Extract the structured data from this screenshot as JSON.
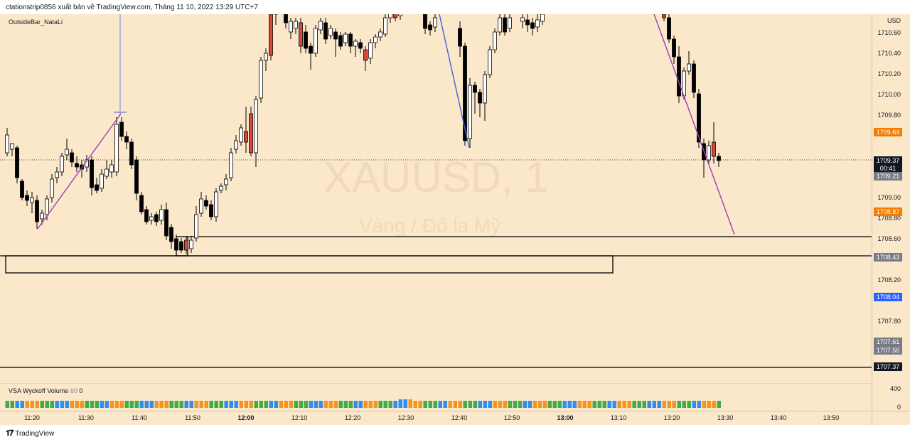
{
  "header": {
    "publisher_text": "ctationstrip0856 xuất bản về TradingView.com, Tháng 11 10, 2022 13:29 UTC+7"
  },
  "indicator_label": "OutsideBar_NataLi",
  "watermark": {
    "symbol": "XAUUSD, 1",
    "description": "Vàng / Đô la Mỹ"
  },
  "price_axis": {
    "currency": "USD",
    "ticks": [
      "1710.60",
      "1710.40",
      "1710.20",
      "1710.00",
      "1709.80",
      "1709.00",
      "1708.80",
      "1708.60",
      "1708.20",
      "1707.80"
    ],
    "tags": {
      "tag_1709_64": {
        "value": "1709.64",
        "color": "#f57c00"
      },
      "last_price": {
        "value": "1709.37",
        "countdown": "00:41",
        "color": "#131722"
      },
      "tag_1709_21": {
        "value": "1709.21",
        "color": "#787b86"
      },
      "tag_1708_87": {
        "value": "1708.87",
        "color": "#f57c00"
      },
      "tag_1708_43": {
        "value": "1708.43",
        "color": "#787b86"
      },
      "tag_1708_04": {
        "value": "1708.04",
        "color": "#2962ff"
      },
      "tag_1707_61": {
        "value": "1707.61",
        "color": "#787b86"
      },
      "tag_1707_56": {
        "value": "1707.56",
        "color": "#787b86"
      },
      "tag_1707_37": {
        "value": "1707.37",
        "color": "#131722"
      }
    }
  },
  "volume_pane": {
    "name": "VSA Wyckoff Volume",
    "length": "60",
    "extra": "0",
    "ticks": [
      "400",
      "0"
    ]
  },
  "time_axis": {
    "labels": [
      {
        "text": "11:20",
        "bold": false
      },
      {
        "text": "11:30",
        "bold": false
      },
      {
        "text": "11:40",
        "bold": false
      },
      {
        "text": "11:50",
        "bold": false
      },
      {
        "text": "12:00",
        "bold": true
      },
      {
        "text": "12:10",
        "bold": false
      },
      {
        "text": "12:20",
        "bold": false
      },
      {
        "text": "12:30",
        "bold": false
      },
      {
        "text": "12:40",
        "bold": false
      },
      {
        "text": "12:50",
        "bold": false
      },
      {
        "text": "13:00",
        "bold": true
      },
      {
        "text": "13:10",
        "bold": false
      },
      {
        "text": "13:20",
        "bold": false
      },
      {
        "text": "13:30",
        "bold": false
      },
      {
        "text": "13:40",
        "bold": false
      },
      {
        "text": "13:50",
        "bold": false
      }
    ]
  },
  "footer": {
    "brand": "TradingView"
  },
  "colors": {
    "background": "#fbe7c9",
    "bull_body": "#ffffff",
    "bear_body": "#000000",
    "signal_body": "#d9473b",
    "trendline_purple": "#9c3fb5",
    "trendline_blue": "#3f63d8",
    "vol_green": "#3fae49",
    "vol_orange": "#f7941d",
    "vol_blue": "#2f8ef4",
    "vol_purple": "#9c27b0"
  }
}
